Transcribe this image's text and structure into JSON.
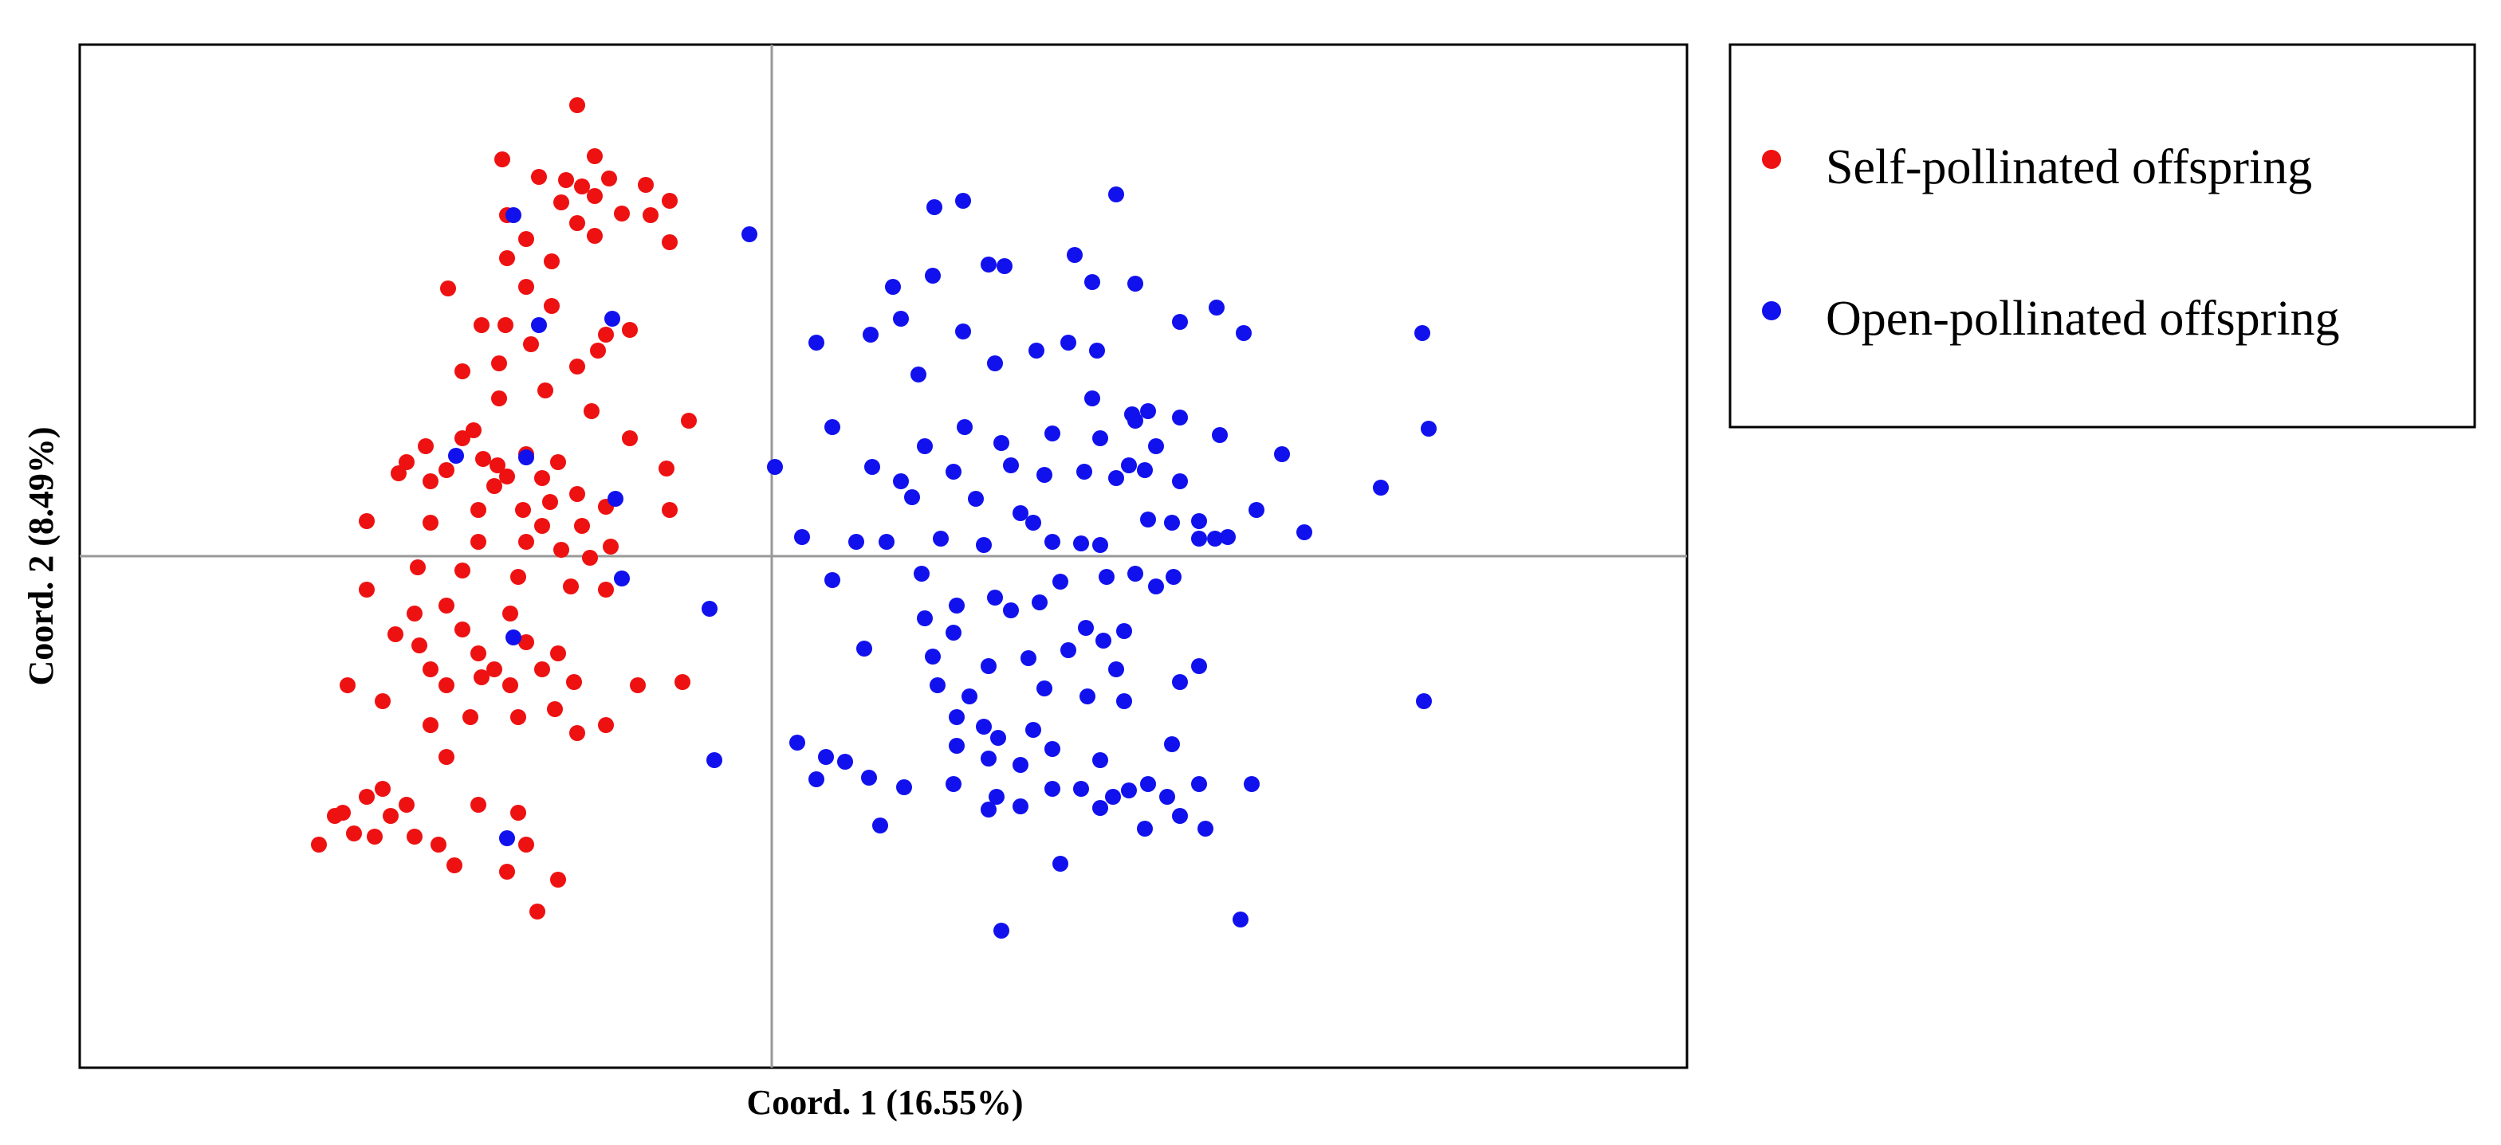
{
  "chart_data": {
    "type": "scatter",
    "x_label": "Coord. 1 (16.55%)",
    "y_label": "Coord. 2 (8.49%)",
    "xlim": [
      -434,
      574
    ],
    "ylim": [
      -321,
      321
    ],
    "zero_lines": true,
    "legend": "right",
    "series": [
      {
        "name": "Self-pollinated offspring",
        "color": "#ee1111",
        "x": [
          -122,
          -169,
          -111,
          -129,
          -146,
          -102,
          -119,
          -111,
          -132,
          -79,
          -64,
          -166,
          -122,
          -111,
          -94,
          -76,
          -64,
          -154,
          -166,
          -138,
          -203,
          -154,
          -138,
          -182,
          -167,
          -151,
          -89,
          -104,
          -109,
          -194,
          -171,
          -122,
          -142,
          -113,
          -89,
          -52,
          -171,
          -187,
          -194,
          -217,
          -234,
          -229,
          -204,
          -181,
          -172,
          -166,
          -154,
          -144,
          -134,
          -122,
          -139,
          -156,
          -174,
          -214,
          -184,
          -144,
          -119,
          -104,
          -66,
          -64,
          -214,
          -254,
          -184,
          -154,
          -132,
          -114,
          -101,
          -194,
          -222,
          -254,
          -159,
          -126,
          -104,
          -204,
          -164,
          -224,
          -236,
          -221,
          -194,
          -184,
          -154,
          -134,
          -144,
          -174,
          -214,
          -204,
          -182,
          -164,
          -124,
          -136,
          -159,
          -189,
          -214,
          -244,
          -266,
          -84,
          -56,
          -104,
          -122,
          -204,
          -244,
          -229,
          -254,
          -269,
          -239,
          -184,
          -159,
          -224,
          -209,
          -249,
          -284,
          -262,
          -199,
          -166,
          -134,
          -147,
          -154,
          -274
        ],
        "values": [
          283,
          249,
          251,
          236,
          238,
          237,
          232,
          226,
          222,
          233,
          223,
          214,
          209,
          201,
          215,
          214,
          197,
          199,
          187,
          185,
          168,
          169,
          157,
          145,
          145,
          133,
          142,
          139,
          129,
          116,
          121,
          119,
          104,
          91,
          74,
          85,
          99,
          79,
          74,
          69,
          52,
          59,
          54,
          61,
          57,
          50,
          64,
          49,
          59,
          39,
          34,
          29,
          44,
          47,
          29,
          19,
          19,
          31,
          55,
          29,
          21,
          22,
          9,
          9,
          4,
          -1,
          6,
          -9,
          -7,
          -21,
          -13,
          -19,
          -21,
          -31,
          -36,
          -36,
          -49,
          -56,
          -46,
          -61,
          -54,
          -61,
          -71,
          -71,
          -71,
          -81,
          -76,
          -81,
          -79,
          -96,
          -101,
          -101,
          -106,
          -91,
          -81,
          -81,
          -79,
          -106,
          -111,
          -126,
          -146,
          -156,
          -151,
          -161,
          -163,
          -156,
          -161,
          -176,
          -181,
          -176,
          -181,
          -174,
          -194,
          -198,
          -203,
          -223,
          -181,
          -163
        ]
      },
      {
        "name": "Open-pollinated offspring",
        "color": "#1111ee",
        "x": [
          -162,
          -146,
          -100,
          -198,
          -154,
          -98,
          -94,
          -162,
          -166,
          -14,
          -39,
          -36,
          2,
          19,
          28,
          38,
          38,
          53,
          58,
          16,
          34,
          46,
          28,
          61,
          68,
          83,
          102,
          120,
          216,
          136,
          146,
          190,
          76,
          101,
          62,
          81,
          120,
          140,
          166,
          186,
          204,
          92,
          201,
          228,
          256,
          279,
          296,
          408,
          63,
          81,
          96,
          121,
          144,
          176,
          201,
          226,
          256,
          281,
          320,
          382,
          412,
          88,
          114,
          128,
          150,
          171,
          196,
          216,
          224,
          234,
          206,
          228,
          236,
          241,
          256,
          268,
          286,
          304,
          334,
          268,
          278,
          156,
          176,
          194,
          206,
          236,
          251,
          72,
          106,
          133,
          164,
          94,
          116,
          140,
          96,
          114,
          150,
          168,
          181,
          210,
          228,
          241,
          252,
          197,
          208,
          221,
          186,
          101,
          104,
          124,
          136,
          161,
          171,
          198,
          216,
          256,
          268,
          409,
          116,
          133,
          142,
          164,
          176,
          206,
          251,
          136,
          156,
          114,
          141,
          176,
          194,
          214,
          224,
          236,
          248,
          268,
          301,
          136,
          156,
          206,
          234,
          256,
          272,
          181,
          144,
          294,
          116,
          221
        ],
        "values": [
          214,
          145,
          149,
          63,
          62,
          36,
          -14,
          -51,
          -177,
          202,
          -33,
          -128,
          56,
          12,
          134,
          81,
          -15,
          9,
          -58,
          -117,
          -126,
          -129,
          -140,
          -139,
          -169,
          -145,
          219,
          223,
          227,
          183,
          182,
          189,
          169,
          176,
          139,
          149,
          141,
          121,
          129,
          134,
          129,
          114,
          172,
          171,
          147,
          156,
          140,
          140,
          56,
          47,
          69,
          81,
          71,
          77,
          99,
          89,
          87,
          76,
          64,
          43,
          80,
          37,
          53,
          36,
          57,
          51,
          53,
          49,
          57,
          54,
          74,
          85,
          91,
          69,
          47,
          22,
          12,
          29,
          15,
          11,
          11,
          27,
          9,
          8,
          7,
          23,
          21,
          9,
          11,
          7,
          21,
          -11,
          -31,
          -26,
          -39,
          -48,
          -34,
          -29,
          -16,
          -13,
          -11,
          -19,
          -13,
          -45,
          -53,
          -47,
          -59,
          -63,
          -81,
          -88,
          -69,
          -64,
          -83,
          -88,
          -71,
          -79,
          -69,
          -91,
          -119,
          -107,
          -114,
          -109,
          -121,
          -128,
          -118,
          -127,
          -131,
          -143,
          -151,
          -146,
          -146,
          -151,
          -147,
          -143,
          -151,
          -143,
          -143,
          -159,
          -157,
          -158,
          -171,
          -163,
          -171,
          -193,
          -235,
          -228,
          -101,
          -91
        ]
      }
    ]
  }
}
